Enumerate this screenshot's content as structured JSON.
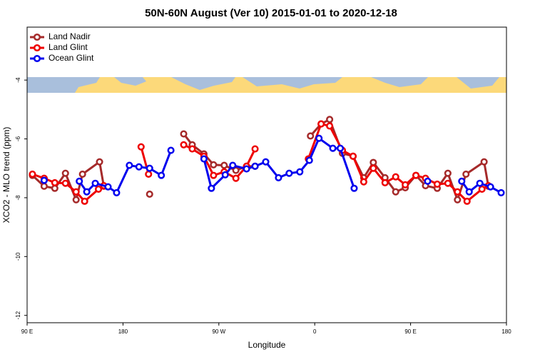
{
  "chart_data": {
    "type": "line",
    "title": "50N-60N August (Ver 10)   2015-01-01 to 2020-12-18",
    "x_label": "Longitude",
    "y_label": "XCO2 - MLO trend (ppm)",
    "xlim": [
      90,
      540
    ],
    "xticks": [
      {
        "value": 90,
        "label": "90 E"
      },
      180,
      {
        "value": 270,
        "label": "90 W"
      },
      {
        "value": 360,
        "label": "0"
      },
      {
        "value": 450,
        "label": "90 E"
      },
      {
        "value": 540,
        "label": "180"
      }
    ],
    "ylim": [
      -12.25,
      -2.2
    ],
    "yticks": [
      -4,
      -6,
      -8,
      -10,
      -12
    ],
    "legend": "upper left",
    "series": [
      {
        "name": "Land Nadir",
        "color": "#a52a2a",
        "x": [
          95,
          106,
          116,
          126,
          136,
          142,
          158,
          162,
          null,
          205,
          null,
          237,
          245,
          256,
          265,
          275,
          286,
          296,
          304,
          null,
          356,
          366,
          374,
          386,
          396,
          406,
          415,
          426,
          436,
          445,
          455,
          464,
          475,
          485,
          494,
          502,
          519,
          523
        ],
        "values": [
          -7.24,
          -7.61,
          -7.68,
          -7.17,
          -8.07,
          -7.2,
          -6.78,
          -7.61,
          null,
          -7.88,
          null,
          -5.83,
          -6.2,
          -6.51,
          -6.88,
          -6.9,
          -7.07,
          -6.93,
          -6.93,
          null,
          -5.9,
          -5.49,
          -5.34,
          -6.49,
          -6.59,
          -7.32,
          -6.8,
          -7.32,
          -7.8,
          -7.66,
          -7.24,
          -7.59,
          -7.68,
          -7.17,
          -8.07,
          -7.2,
          -6.78,
          -7.61
        ]
      },
      {
        "name": "Land Glint",
        "color": "#ee0000",
        "x": [
          95,
          106,
          116,
          126,
          136,
          144,
          157,
          162,
          null,
          197,
          204,
          null,
          237,
          245,
          256,
          265,
          275,
          286,
          296,
          304,
          null,
          354,
          366,
          374,
          386,
          396,
          406,
          415,
          426,
          436,
          445,
          455,
          464,
          475,
          485,
          494,
          503,
          517,
          523
        ],
        "values": [
          -7.2,
          -7.34,
          -7.49,
          -7.51,
          -7.8,
          -8.12,
          -7.71,
          -7.59,
          null,
          -6.27,
          -7.2,
          null,
          -6.2,
          -6.34,
          -6.59,
          -7.24,
          -7.12,
          -7.34,
          -6.93,
          -6.34,
          null,
          -6.68,
          -5.49,
          -5.56,
          -6.39,
          -6.59,
          -7.46,
          -7.0,
          -7.49,
          -7.29,
          -7.56,
          -7.24,
          -7.34,
          -7.54,
          -7.51,
          -7.8,
          -8.12,
          -7.71,
          -7.59
        ]
      },
      {
        "name": "Ocean Glint",
        "color": "#0000ee",
        "x": [
          106,
          null,
          139,
          146,
          154,
          166,
          174,
          186,
          195,
          205,
          216,
          225,
          null,
          256,
          263,
          276,
          283,
          296,
          304,
          314,
          326,
          336,
          346,
          355,
          364,
          377,
          384,
          397,
          null,
          466,
          null,
          498,
          505,
          515,
          525,
          535
        ],
        "values": [
          -7.41,
          null,
          -7.44,
          -7.8,
          -7.51,
          -7.63,
          -7.83,
          -6.9,
          -6.95,
          -7.0,
          -7.24,
          -6.39,
          null,
          -6.68,
          -7.68,
          -7.22,
          -6.9,
          -7.02,
          -6.93,
          -6.78,
          -7.32,
          -7.17,
          -7.12,
          -6.73,
          -5.98,
          -6.32,
          -6.32,
          -7.68,
          null,
          -7.44,
          null,
          -7.44,
          -7.8,
          -7.51,
          -7.63,
          -7.83
        ]
      }
    ]
  }
}
